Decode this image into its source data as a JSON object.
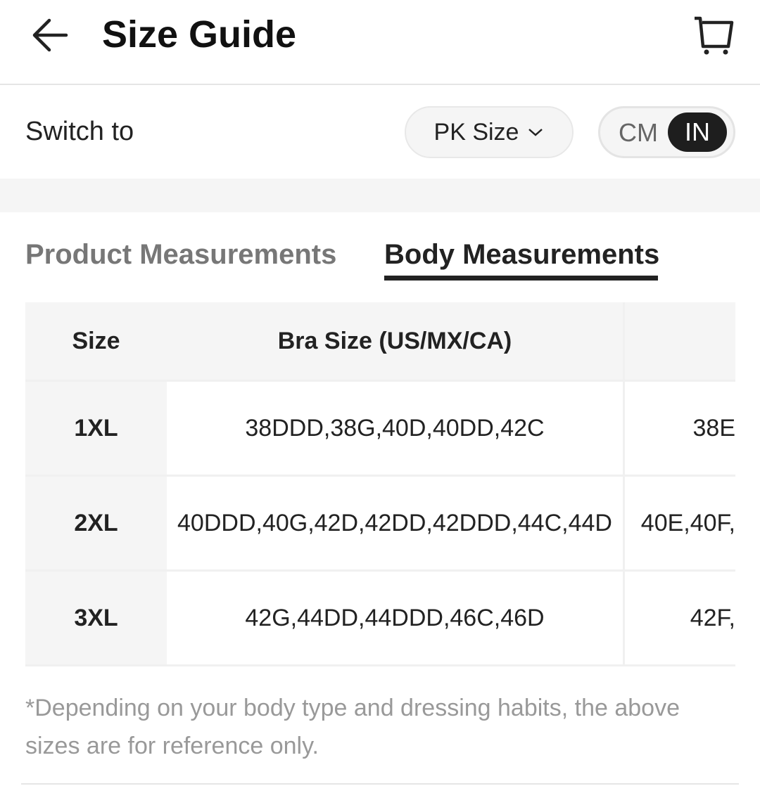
{
  "header": {
    "title": "Size Guide",
    "back_icon": "arrow-left-icon",
    "cart_icon": "cart-icon"
  },
  "switch": {
    "label": "Switch to",
    "region_select": "PK Size",
    "units": {
      "options": [
        "CM",
        "IN"
      ],
      "selected": "IN"
    }
  },
  "tabs": [
    {
      "label": "Product Measurements",
      "active": false
    },
    {
      "label": "Body Measurements",
      "active": true
    }
  ],
  "table": {
    "headers": [
      "Size",
      "Bra Size (US/MX/CA)",
      ""
    ],
    "rows": [
      [
        "1XL",
        "38DDD,38G,40D,40DD,42C",
        "38E"
      ],
      [
        "2XL",
        "40DDD,40G,42D,42DD,42DDD,44C,44D",
        "40E,40F,"
      ],
      [
        "3XL",
        "42G,44DD,44DDD,46C,46D",
        "42F,"
      ]
    ]
  },
  "note": "*Depending on your body type and dressing habits, the above sizes are for reference only."
}
